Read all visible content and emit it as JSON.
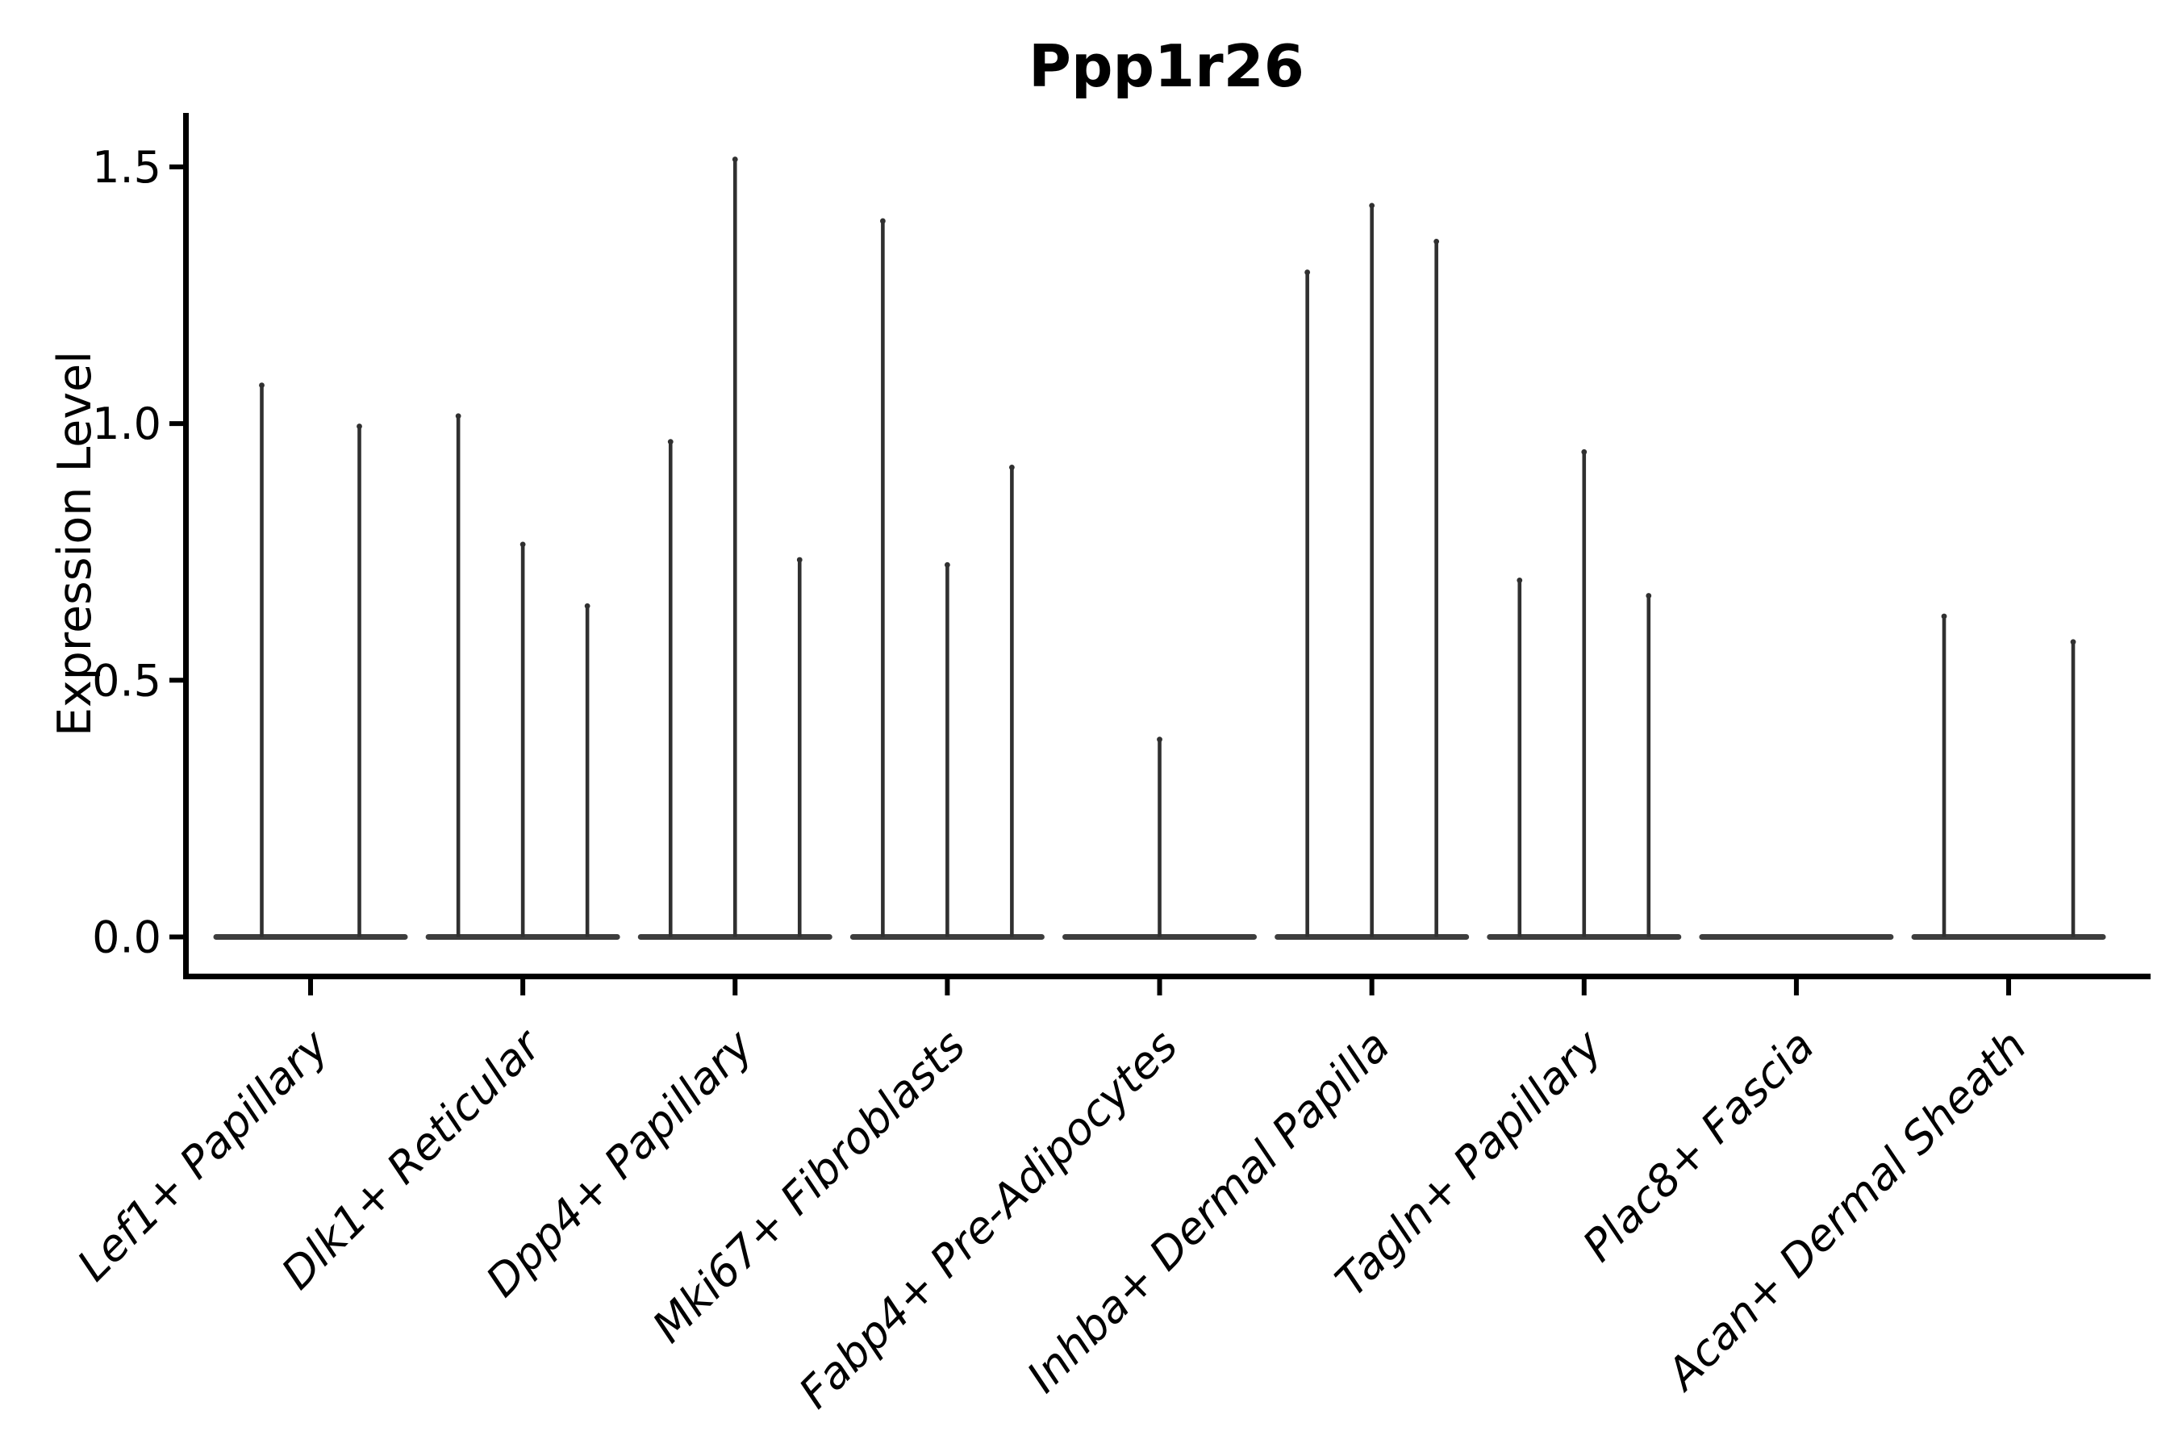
{
  "figure": {
    "title": "Ppp1r26"
  },
  "y_axis": {
    "label": "Expression Level",
    "tick_labels": [
      "0.0",
      "0.5",
      "1.0",
      "1.5"
    ]
  },
  "chart_data": {
    "type": "violin",
    "title": "Ppp1r26",
    "ylabel": "Expression Level",
    "xlabel": "",
    "ylim": [
      0,
      1.6
    ],
    "yticks": [
      0.0,
      0.5,
      1.0,
      1.5
    ],
    "grid": false,
    "legend": "none",
    "style": "collapsed violins: flat dark base at y=0 with a thin vertical spike up to each violin's maximum expression; zero-expression violins show only the flat base",
    "categories": [
      "Lef1+ Papillary",
      "Dlk1+ Reticular",
      "Dpp4+ Papillary",
      "Mki67+ Fibroblasts",
      "Fabp4+ Pre-Adipocytes",
      "Inhba+ Dermal Papilla",
      "Tagln+ Papillary",
      "Plac8+ Fascia",
      "Acan+ Dermal Sheath"
    ],
    "groups": [
      {
        "category": "Lef1+ Papillary",
        "violin_max_values": [
          1.08,
          1.0
        ]
      },
      {
        "category": "Dlk1+ Reticular",
        "violin_max_values": [
          1.02,
          0.77,
          0.65
        ]
      },
      {
        "category": "Dpp4+ Papillary",
        "violin_max_values": [
          0.97,
          1.52,
          0.74
        ]
      },
      {
        "category": "Mki67+ Fibroblasts",
        "violin_max_values": [
          1.4,
          0.73,
          0.92
        ]
      },
      {
        "category": "Fabp4+ Pre-Adipocytes",
        "violin_max_values": [
          0,
          0.39,
          0
        ]
      },
      {
        "category": "Inhba+ Dermal Papilla",
        "violin_max_values": [
          1.3,
          1.43,
          1.36
        ]
      },
      {
        "category": "Tagln+ Papillary",
        "violin_max_values": [
          0.7,
          0.95,
          0.67
        ]
      },
      {
        "category": "Plac8+ Fascia",
        "violin_max_values": [
          0,
          0,
          0
        ]
      },
      {
        "category": "Acan+ Dermal Sheath",
        "violin_max_values": [
          0.63,
          0,
          0.58
        ]
      }
    ],
    "colors": {
      "spike": "#303030",
      "violin_base": "#3d3d3d",
      "axis": "#000000",
      "text": "#000000"
    }
  }
}
